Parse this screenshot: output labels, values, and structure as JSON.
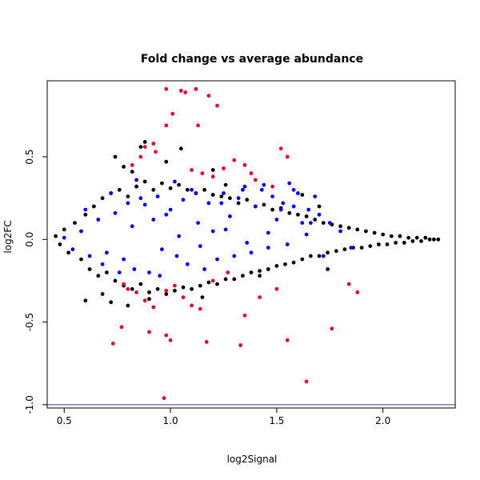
{
  "chart_data": {
    "type": "scatter",
    "title": "Fold change vs average abundance",
    "xlabel": "log2Signal",
    "ylabel": "log2FC",
    "xlim": [
      0.42,
      2.34
    ],
    "ylim": [
      -1.02,
      0.96
    ],
    "xticks": [
      "0.5",
      "1.0",
      "1.5",
      "2.0"
    ],
    "yticks": [
      "-1.0",
      "-0.5",
      "0.0",
      "0.5"
    ],
    "grid": false,
    "hline": {
      "y": -1.0,
      "color": "#3a3aa8"
    },
    "colors": {
      "background": "#ffffff",
      "bulk": "#000000",
      "blue": "#0000ff",
      "red": "#e8002a",
      "axis": "#000000"
    },
    "series": [
      {
        "color": "#000000",
        "x": [
          0.46,
          0.48,
          0.5,
          0.52,
          0.55,
          0.58,
          0.6,
          0.62,
          0.64,
          0.66,
          0.68,
          0.7,
          0.72,
          0.74,
          0.76,
          0.78,
          0.8,
          0.82,
          0.84,
          0.86,
          0.88,
          0.9,
          0.92,
          0.94,
          0.96,
          0.98,
          1.0,
          1.02,
          1.04,
          1.06,
          1.08,
          1.1,
          1.12,
          1.14,
          1.16,
          1.18,
          1.2,
          1.22,
          1.24,
          1.26,
          1.28,
          1.3,
          1.32,
          1.34,
          1.36,
          1.38,
          1.4,
          1.42,
          1.44,
          1.46,
          1.48,
          1.5,
          1.52,
          1.54,
          1.56,
          1.58,
          1.6,
          1.62,
          1.64,
          1.66,
          1.68,
          1.7,
          1.72,
          1.74,
          1.76,
          1.78,
          1.8,
          1.82,
          1.84,
          1.86,
          1.88,
          1.9,
          1.92,
          1.94,
          1.96,
          1.98,
          2.0,
          2.02,
          2.04,
          2.06,
          2.08,
          2.1,
          2.12,
          2.14,
          2.16,
          2.18,
          2.2,
          2.22,
          2.24,
          2.26,
          0.74,
          0.88,
          0.86,
          0.82,
          0.78,
          0.84,
          0.6,
          0.72,
          0.98,
          1.2,
          1.26,
          1.05,
          1.42,
          1.62,
          1.7,
          1.74,
          0.68,
          0.8,
          0.9,
          1.15
        ],
        "y": [
          0.02,
          -0.03,
          0.06,
          -0.08,
          0.1,
          -0.12,
          0.15,
          -0.18,
          0.2,
          -0.22,
          0.25,
          -0.2,
          0.28,
          -0.25,
          0.3,
          -0.28,
          0.26,
          -0.3,
          0.32,
          -0.27,
          0.35,
          -0.32,
          0.3,
          -0.3,
          0.34,
          -0.33,
          0.31,
          -0.31,
          0.33,
          -0.29,
          0.3,
          -0.3,
          0.28,
          -0.28,
          0.3,
          -0.26,
          0.27,
          -0.27,
          0.26,
          -0.24,
          0.25,
          -0.24,
          0.22,
          -0.22,
          0.24,
          -0.2,
          0.2,
          -0.19,
          0.21,
          -0.18,
          0.18,
          -0.16,
          0.19,
          -0.15,
          0.16,
          -0.14,
          0.15,
          -0.12,
          0.14,
          -0.1,
          0.12,
          -0.1,
          0.1,
          -0.08,
          0.09,
          -0.07,
          0.08,
          -0.06,
          0.07,
          -0.05,
          0.06,
          -0.05,
          0.05,
          -0.04,
          0.04,
          -0.03,
          0.03,
          -0.03,
          0.02,
          -0.02,
          0.02,
          -0.02,
          0.01,
          -0.01,
          0.01,
          -0.01,
          0.01,
          0.0,
          0.0,
          0.0,
          0.5,
          0.59,
          0.56,
          0.41,
          0.44,
          0.32,
          -0.37,
          -0.38,
          0.47,
          0.42,
          0.33,
          0.55,
          -0.22,
          0.27,
          0.2,
          -0.18,
          -0.33,
          -0.4,
          -0.36,
          -0.35
        ]
      },
      {
        "color": "#0000ff",
        "x": [
          0.5,
          0.54,
          0.58,
          0.62,
          0.66,
          0.7,
          0.74,
          0.78,
          0.8,
          0.83,
          0.86,
          0.88,
          0.9,
          0.92,
          0.95,
          0.98,
          1.0,
          1.03,
          1.06,
          1.08,
          1.1,
          1.13,
          1.16,
          1.18,
          1.2,
          1.22,
          1.25,
          1.28,
          1.3,
          1.32,
          1.35,
          1.38,
          1.4,
          1.43,
          1.46,
          1.48,
          1.5,
          1.53,
          1.56,
          1.58,
          1.6,
          1.62,
          1.65,
          1.68,
          1.72,
          1.75,
          1.8,
          0.6,
          0.72,
          0.76,
          0.84,
          0.94,
          1.02,
          1.12,
          1.24,
          1.34,
          1.44,
          1.52,
          1.58,
          1.66,
          1.7,
          0.68,
          0.82,
          0.96,
          1.04,
          1.14,
          1.26,
          1.36,
          1.46,
          1.55,
          1.64,
          1.85
        ],
        "y": [
          0.01,
          -0.06,
          0.05,
          -0.1,
          0.12,
          -0.08,
          0.16,
          -0.12,
          0.22,
          -0.18,
          0.25,
          0.21,
          -0.2,
          0.12,
          -0.22,
          0.15,
          0.18,
          -0.1,
          0.24,
          -0.15,
          0.3,
          0.1,
          -0.18,
          0.22,
          0.05,
          -0.12,
          0.28,
          0.14,
          -0.1,
          0.25,
          0.32,
          -0.08,
          0.2,
          0.3,
          -0.05,
          0.26,
          0.12,
          0.22,
          0.34,
          0.2,
          0.28,
          0.1,
          0.18,
          0.26,
          -0.1,
          0.1,
          0.05,
          0.18,
          0.28,
          -0.2,
          0.36,
          0.26,
          0.35,
          0.28,
          0.22,
          0.3,
          0.33,
          0.18,
          0.3,
          0.1,
          0.15,
          -0.15,
          0.08,
          -0.06,
          0.02,
          -0.04,
          0.06,
          -0.02,
          0.04,
          -0.03,
          0.03,
          -0.05
        ]
      },
      {
        "color": "#e8002a",
        "x": [
          0.98,
          1.05,
          1.07,
          1.12,
          1.18,
          1.22,
          1.13,
          1.01,
          0.98,
          0.92,
          0.88,
          0.93,
          0.86,
          0.82,
          1.1,
          1.15,
          1.2,
          1.25,
          1.3,
          1.35,
          1.38,
          1.4,
          1.48,
          1.52,
          1.55,
          0.78,
          0.8,
          0.84,
          0.88,
          0.92,
          0.98,
          1.02,
          1.06,
          1.1,
          1.14,
          1.2,
          1.27,
          1.35,
          1.42,
          1.5,
          1.55,
          0.73,
          0.77,
          0.9,
          0.98,
          1.0,
          1.17,
          1.33,
          1.64,
          1.76,
          1.84,
          1.88,
          0.97
        ],
        "y": [
          0.91,
          0.9,
          0.89,
          0.91,
          0.87,
          0.81,
          0.69,
          0.76,
          0.69,
          0.58,
          0.56,
          0.53,
          0.5,
          0.45,
          0.42,
          0.4,
          0.38,
          0.43,
          0.48,
          0.45,
          0.4,
          0.36,
          0.32,
          0.55,
          0.5,
          -0.27,
          -0.3,
          -0.32,
          -0.37,
          -0.41,
          -0.31,
          -0.28,
          -0.35,
          -0.4,
          -0.42,
          -0.25,
          -0.2,
          -0.46,
          -0.35,
          -0.3,
          -0.61,
          -0.63,
          -0.53,
          -0.56,
          -0.58,
          -0.61,
          -0.62,
          -0.64,
          -0.86,
          -0.54,
          -0.27,
          -0.32,
          -0.96
        ]
      }
    ]
  }
}
